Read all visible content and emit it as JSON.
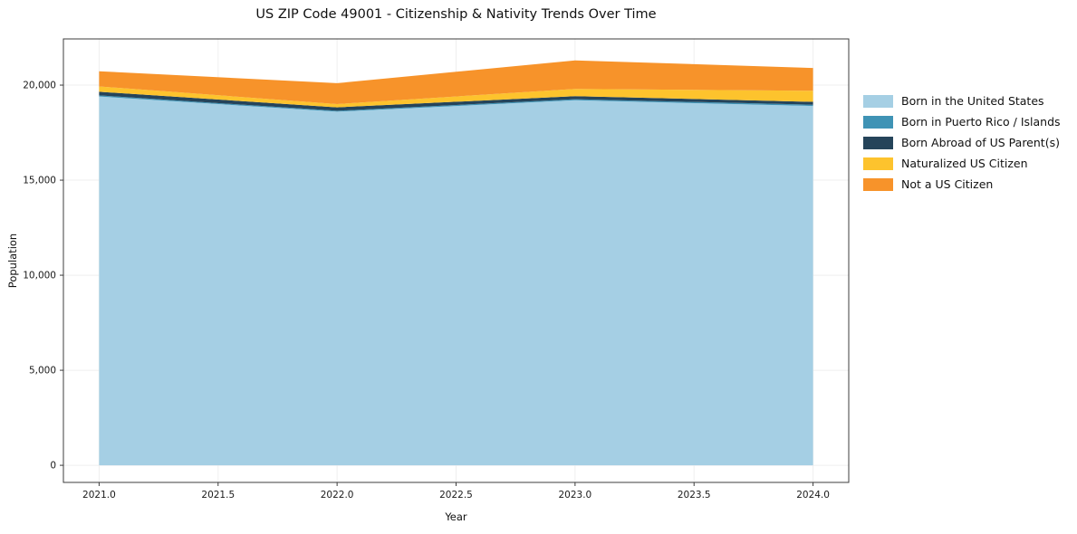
{
  "title": "US ZIP Code 49001 - Citizenship & Nativity Trends Over Time",
  "chart_data": {
    "type": "area",
    "stacked": true,
    "title": "US ZIP Code 49001 - Citizenship & Nativity Trends Over Time",
    "xlabel": "Year",
    "ylabel": "Population",
    "x": [
      2021,
      2022,
      2023,
      2024
    ],
    "series": [
      {
        "name": "Born in the United States",
        "color": "#a5cfe4",
        "values": [
          19400,
          18600,
          19200,
          18900
        ]
      },
      {
        "name": "Born in Puerto Rico / Islands",
        "color": "#3f93b5",
        "values": [
          60,
          50,
          60,
          70
        ]
      },
      {
        "name": "Born Abroad of US Parent(s)",
        "color": "#25445a",
        "values": [
          190,
          180,
          160,
          150
        ]
      },
      {
        "name": "Naturalized US Citizen",
        "color": "#fdc32d",
        "values": [
          280,
          170,
          380,
          580
        ]
      },
      {
        "name": "Not a US Citizen",
        "color": "#f7932a",
        "values": [
          800,
          1100,
          1500,
          1200
        ]
      }
    ],
    "xticks": [
      "2021.0",
      "2021.5",
      "2022.0",
      "2022.5",
      "2023.0",
      "2023.5",
      "2024.0"
    ],
    "xtick_values": [
      2021,
      2021.5,
      2022,
      2022.5,
      2023,
      2023.5,
      2024
    ],
    "yticks": [
      "0",
      "5,000",
      "10,000",
      "15,000",
      "20,000"
    ],
    "ytick_values": [
      0,
      5000,
      10000,
      15000,
      20000
    ],
    "xlim": [
      2020.85,
      2024.15
    ],
    "ylim": [
      -900,
      22430
    ],
    "grid": true,
    "legend_position": "right"
  }
}
